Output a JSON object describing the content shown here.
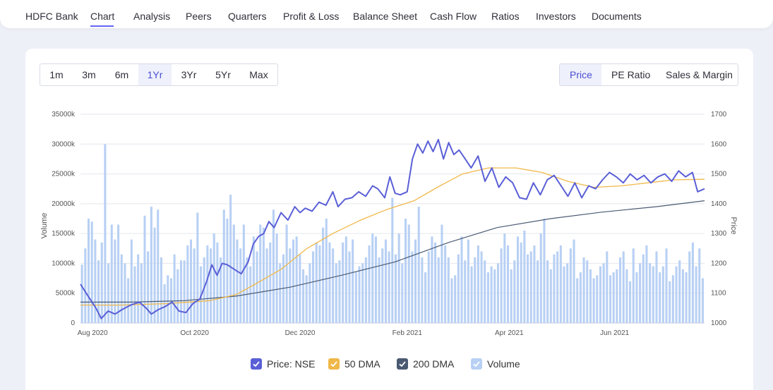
{
  "nav": {
    "items": [
      {
        "label": "HDFC Bank"
      },
      {
        "label": "Chart"
      },
      {
        "label": "Analysis"
      },
      {
        "label": "Peers"
      },
      {
        "label": "Quarters"
      },
      {
        "label": "Profit & Loss"
      },
      {
        "label": "Balance Sheet"
      },
      {
        "label": "Cash Flow"
      },
      {
        "label": "Ratios"
      },
      {
        "label": "Investors"
      },
      {
        "label": "Documents"
      }
    ],
    "active": "Chart"
  },
  "range_buttons": [
    {
      "label": "1m"
    },
    {
      "label": "3m"
    },
    {
      "label": "6m"
    },
    {
      "label": "1Yr"
    },
    {
      "label": "3Yr"
    },
    {
      "label": "5Yr"
    },
    {
      "label": "Max"
    }
  ],
  "selected_range": "1Yr",
  "metric_buttons": [
    {
      "label": "Price"
    },
    {
      "label": "PE Ratio"
    },
    {
      "label": "Sales & Margin"
    }
  ],
  "selected_metric": "Price",
  "legend": [
    {
      "label": "Price: NSE",
      "color": "#5a5fd6"
    },
    {
      "label": "50 DMA",
      "color": "#f0b849"
    },
    {
      "label": "200 DMA",
      "color": "#4a5a72"
    },
    {
      "label": "Volume",
      "color": "#b8d0f4"
    }
  ],
  "chart_data": {
    "type": "line",
    "xlabel": "",
    "ylabel_left": "Volume",
    "ylabel_right": "Price",
    "x_ticks": [
      "Aug 2020",
      "Oct 2020",
      "Dec 2020",
      "Feb 2021",
      "Apr 2021",
      "Jun 2021"
    ],
    "y_left_ticks": [
      "0",
      "5000k",
      "10000k",
      "15000k",
      "20000k",
      "25000k",
      "30000k",
      "35000k"
    ],
    "y_left_range": [
      0,
      35000000
    ],
    "y_right_ticks": [
      "1000",
      "1100",
      "1200",
      "1300",
      "1400",
      "1500",
      "1600",
      "1700"
    ],
    "y_right_range": [
      1000,
      1700
    ],
    "x_range": [
      "2020-07-27",
      "2021-07-23"
    ],
    "grid": true,
    "series": [
      {
        "name": "Price: NSE",
        "color": "#5a5fd6",
        "points": [
          [
            "2020-07-27",
            1130
          ],
          [
            "2020-08-01",
            1085
          ],
          [
            "2020-08-05",
            1050
          ],
          [
            "2020-08-08",
            1015
          ],
          [
            "2020-08-12",
            1040
          ],
          [
            "2020-08-16",
            1030
          ],
          [
            "2020-08-20",
            1045
          ],
          [
            "2020-08-25",
            1060
          ],
          [
            "2020-08-30",
            1070
          ],
          [
            "2020-09-03",
            1050
          ],
          [
            "2020-09-06",
            1030
          ],
          [
            "2020-09-10",
            1045
          ],
          [
            "2020-09-14",
            1055
          ],
          [
            "2020-09-18",
            1070
          ],
          [
            "2020-09-22",
            1040
          ],
          [
            "2020-09-26",
            1035
          ],
          [
            "2020-09-30",
            1065
          ],
          [
            "2020-10-04",
            1080
          ],
          [
            "2020-10-08",
            1140
          ],
          [
            "2020-10-11",
            1195
          ],
          [
            "2020-10-14",
            1160
          ],
          [
            "2020-10-17",
            1200
          ],
          [
            "2020-10-20",
            1195
          ],
          [
            "2020-10-24",
            1180
          ],
          [
            "2020-10-28",
            1165
          ],
          [
            "2020-11-01",
            1205
          ],
          [
            "2020-11-04",
            1265
          ],
          [
            "2020-11-07",
            1290
          ],
          [
            "2020-11-10",
            1300
          ],
          [
            "2020-11-13",
            1340
          ],
          [
            "2020-11-16",
            1320
          ],
          [
            "2020-11-20",
            1370
          ],
          [
            "2020-11-24",
            1345
          ],
          [
            "2020-11-28",
            1390
          ],
          [
            "2020-12-01",
            1370
          ],
          [
            "2020-12-04",
            1385
          ],
          [
            "2020-12-08",
            1375
          ],
          [
            "2020-12-12",
            1405
          ],
          [
            "2020-12-16",
            1395
          ],
          [
            "2020-12-20",
            1440
          ],
          [
            "2020-12-23",
            1390
          ],
          [
            "2020-12-27",
            1415
          ],
          [
            "2020-12-31",
            1420
          ],
          [
            "2021-01-04",
            1440
          ],
          [
            "2021-01-08",
            1425
          ],
          [
            "2021-01-12",
            1460
          ],
          [
            "2021-01-15",
            1450
          ],
          [
            "2021-01-19",
            1420
          ],
          [
            "2021-01-22",
            1490
          ],
          [
            "2021-01-25",
            1435
          ],
          [
            "2021-01-28",
            1430
          ],
          [
            "2021-02-01",
            1440
          ],
          [
            "2021-02-04",
            1550
          ],
          [
            "2021-02-07",
            1600
          ],
          [
            "2021-02-10",
            1570
          ],
          [
            "2021-02-13",
            1610
          ],
          [
            "2021-02-16",
            1575
          ],
          [
            "2021-02-19",
            1615
          ],
          [
            "2021-02-22",
            1550
          ],
          [
            "2021-02-25",
            1605
          ],
          [
            "2021-02-28",
            1565
          ],
          [
            "2021-03-03",
            1580
          ],
          [
            "2021-03-06",
            1555
          ],
          [
            "2021-03-10",
            1520
          ],
          [
            "2021-03-14",
            1560
          ],
          [
            "2021-03-18",
            1475
          ],
          [
            "2021-03-22",
            1520
          ],
          [
            "2021-03-26",
            1455
          ],
          [
            "2021-03-30",
            1490
          ],
          [
            "2021-04-03",
            1470
          ],
          [
            "2021-04-07",
            1420
          ],
          [
            "2021-04-11",
            1415
          ],
          [
            "2021-04-15",
            1470
          ],
          [
            "2021-04-19",
            1430
          ],
          [
            "2021-04-23",
            1480
          ],
          [
            "2021-04-27",
            1495
          ],
          [
            "2021-05-01",
            1460
          ],
          [
            "2021-05-05",
            1425
          ],
          [
            "2021-05-09",
            1470
          ],
          [
            "2021-05-13",
            1420
          ],
          [
            "2021-05-17",
            1460
          ],
          [
            "2021-05-21",
            1450
          ],
          [
            "2021-05-25",
            1480
          ],
          [
            "2021-05-29",
            1505
          ],
          [
            "2021-06-02",
            1490
          ],
          [
            "2021-06-06",
            1470
          ],
          [
            "2021-06-10",
            1500
          ],
          [
            "2021-06-14",
            1480
          ],
          [
            "2021-06-18",
            1495
          ],
          [
            "2021-06-22",
            1470
          ],
          [
            "2021-06-26",
            1490
          ],
          [
            "2021-06-30",
            1500
          ],
          [
            "2021-07-04",
            1475
          ],
          [
            "2021-07-08",
            1510
          ],
          [
            "2021-07-12",
            1490
          ],
          [
            "2021-07-16",
            1505
          ],
          [
            "2021-07-19",
            1440
          ],
          [
            "2021-07-23",
            1450
          ]
        ]
      },
      {
        "name": "50 DMA",
        "color": "#f0b849",
        "points": [
          [
            "2020-07-27",
            1060
          ],
          [
            "2020-08-20",
            1060
          ],
          [
            "2020-09-15",
            1065
          ],
          [
            "2020-10-10",
            1075
          ],
          [
            "2020-10-25",
            1095
          ],
          [
            "2020-11-05",
            1130
          ],
          [
            "2020-11-20",
            1180
          ],
          [
            "2020-12-05",
            1250
          ],
          [
            "2020-12-20",
            1300
          ],
          [
            "2021-01-05",
            1345
          ],
          [
            "2021-01-20",
            1380
          ],
          [
            "2021-02-05",
            1410
          ],
          [
            "2021-02-20",
            1460
          ],
          [
            "2021-03-05",
            1500
          ],
          [
            "2021-03-20",
            1520
          ],
          [
            "2021-04-05",
            1520
          ],
          [
            "2021-04-20",
            1505
          ],
          [
            "2021-05-05",
            1475
          ],
          [
            "2021-05-20",
            1455
          ],
          [
            "2021-06-05",
            1460
          ],
          [
            "2021-06-20",
            1470
          ],
          [
            "2021-07-05",
            1480
          ],
          [
            "2021-07-23",
            1482
          ]
        ]
      },
      {
        "name": "200 DMA",
        "color": "#4a5a72",
        "points": [
          [
            "2020-07-27",
            1070
          ],
          [
            "2020-08-25",
            1070
          ],
          [
            "2020-09-25",
            1075
          ],
          [
            "2020-10-25",
            1090
          ],
          [
            "2020-11-25",
            1120
          ],
          [
            "2020-12-25",
            1160
          ],
          [
            "2021-01-25",
            1205
          ],
          [
            "2021-02-25",
            1270
          ],
          [
            "2021-03-25",
            1320
          ],
          [
            "2021-04-25",
            1350
          ],
          [
            "2021-05-25",
            1372
          ],
          [
            "2021-06-25",
            1390
          ],
          [
            "2021-07-23",
            1410
          ]
        ]
      },
      {
        "name": "Volume",
        "color": "#b8d0f4",
        "axis": "left",
        "values_k": [
          9800,
          12500,
          17500,
          17000,
          14000,
          10500,
          13500,
          30000,
          10000,
          16500,
          14000,
          16500,
          11500,
          10000,
          7500,
          14000,
          9500,
          11500,
          10000,
          18000,
          12000,
          19500,
          16000,
          19000,
          11000,
          6500,
          8000,
          7500,
          11500,
          9000,
          10500,
          10500,
          13000,
          14000,
          12500,
          18500,
          9500,
          11000,
          13000,
          12500,
          15000,
          13500,
          11000,
          19000,
          17500,
          21500,
          16500,
          14000,
          12500,
          16500,
          11000,
          9500,
          14500,
          12000,
          16500,
          16000,
          12500,
          13500,
          19000,
          15000,
          10000,
          11500,
          16500,
          12500,
          14000,
          14500,
          11500,
          9000,
          8000,
          10000,
          12000,
          13500,
          13000,
          16000,
          17500,
          13500,
          12500,
          10000,
          10500,
          13500,
          14500,
          12000,
          14000,
          8500,
          9500,
          10000,
          11000,
          13000,
          15000,
          14500,
          11000,
          12500,
          14000,
          12000,
          21000,
          11500,
          15000,
          10000,
          17500,
          16500,
          12000,
          14000,
          19500,
          11000,
          8500,
          12000,
          14500,
          13500,
          11000,
          16500,
          13000,
          11000,
          7500,
          8000,
          11500,
          14500,
          10500,
          14000,
          9500,
          11000,
          13000,
          12000,
          10500,
          8500,
          9500,
          9000,
          10000,
          12500,
          15000,
          13000,
          9000,
          10500,
          14500,
          13500,
          15500,
          11500,
          12000,
          13000,
          10500,
          15000,
          17500,
          10500,
          9000,
          11500,
          12000,
          13000,
          9500,
          10000,
          12500,
          14000,
          7500,
          8500,
          11000,
          10500,
          9000,
          7500,
          8000,
          9500,
          10000,
          12000,
          8000,
          8500,
          9000,
          11000,
          12000,
          9000,
          7000,
          12500,
          8500,
          10000,
          11500,
          13000,
          10000,
          9500,
          12000,
          8500,
          9500,
          12500,
          7000,
          8000,
          9500,
          10500,
          9000,
          8500,
          12000,
          13500,
          9500,
          12500,
          7500
        ]
      }
    ]
  }
}
